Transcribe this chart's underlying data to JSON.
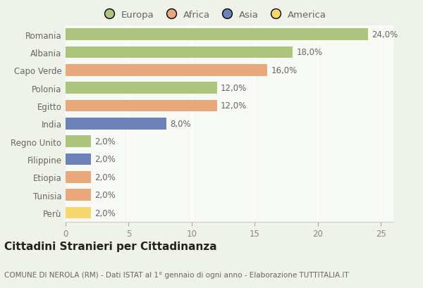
{
  "categories": [
    "Romania",
    "Albania",
    "Capo Verde",
    "Polonia",
    "Egitto",
    "India",
    "Regno Unito",
    "Filippine",
    "Etiopia",
    "Tunisia",
    "Perù"
  ],
  "values": [
    24.0,
    18.0,
    16.0,
    12.0,
    12.0,
    8.0,
    2.0,
    2.0,
    2.0,
    2.0,
    2.0
  ],
  "colors": [
    "#adc47e",
    "#adc47e",
    "#e8a87c",
    "#adc47e",
    "#e8a87c",
    "#6d82b8",
    "#adc47e",
    "#6d82b8",
    "#e8a87c",
    "#e8a87c",
    "#f5d76e"
  ],
  "legend_labels": [
    "Europa",
    "Africa",
    "Asia",
    "America"
  ],
  "legend_colors": [
    "#adc47e",
    "#e8a87c",
    "#6d82b8",
    "#f5d76e"
  ],
  "title": "Cittadini Stranieri per Cittadinanza",
  "subtitle": "COMUNE DI NEROLA (RM) - Dati ISTAT al 1° gennaio di ogni anno - Elaborazione TUTTITALIA.IT",
  "xlim": [
    0,
    26
  ],
  "xticks": [
    0,
    5,
    10,
    15,
    20,
    25
  ],
  "bg_color": "#eef2e8",
  "plot_bg_color": "#f7f9f4",
  "grid_color": "#ffffff",
  "bar_height": 0.65,
  "title_fontsize": 11,
  "subtitle_fontsize": 7.5,
  "label_fontsize": 8.5,
  "tick_fontsize": 8.5,
  "legend_fontsize": 9.5
}
